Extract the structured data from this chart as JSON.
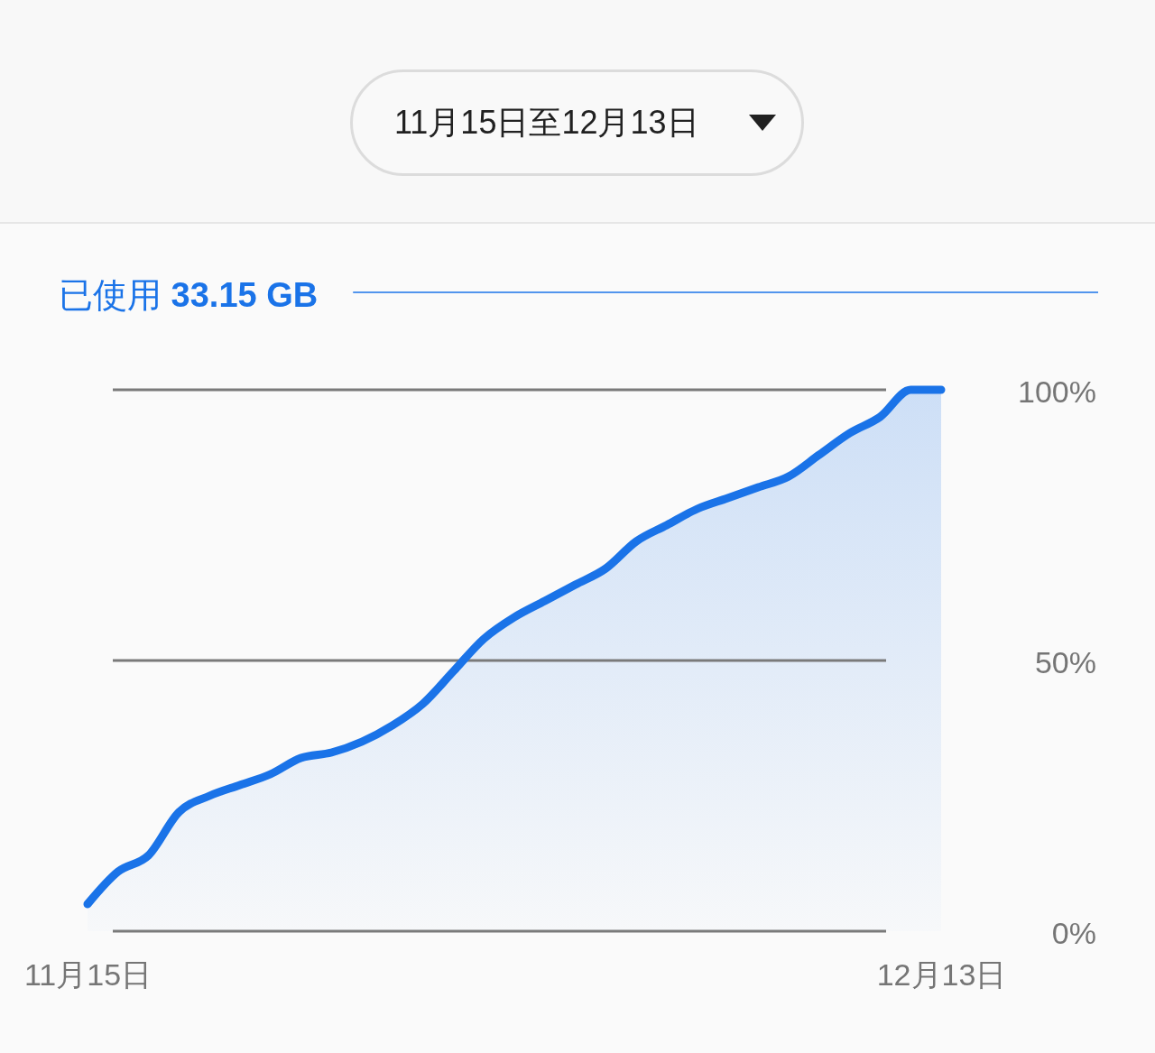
{
  "chart_data": {
    "type": "area",
    "title": "已使用 33.15 GB",
    "subtitle": "11月15日至12月13日",
    "x": [
      "--11-15",
      "--11-16",
      "--11-17",
      "--11-18",
      "--11-19",
      "--11-20",
      "--11-21",
      "--11-22",
      "--11-23",
      "--11-24",
      "--11-25",
      "--11-26",
      "--11-27",
      "--11-28",
      "--11-29",
      "--11-30",
      "--12-01",
      "--12-02",
      "--12-03",
      "--12-04",
      "--12-05",
      "--12-06",
      "--12-07",
      "--12-08",
      "--12-09",
      "--12-10",
      "--12-11",
      "--12-12",
      "--12-13"
    ],
    "values": [
      5,
      11,
      14,
      22,
      25,
      27,
      29,
      32,
      33,
      35,
      38,
      42,
      48,
      54,
      58,
      61,
      64,
      67,
      72,
      75,
      78,
      80,
      82,
      84,
      88,
      92,
      95,
      100,
      100
    ],
    "color": "#1a73e8",
    "xlim": [
      "--11-15",
      "--12-13"
    ],
    "xticks": [
      {
        "value": "--11-15",
        "label": "11月15日"
      },
      {
        "value": "--12-13",
        "label": "12月13日"
      }
    ],
    "ylim": [
      0,
      100
    ],
    "yticks": [
      {
        "value": 0,
        "label": "0%"
      },
      {
        "value": 50,
        "label": "50%"
      },
      {
        "value": 100,
        "label": "100%"
      }
    ],
    "grid": "y"
  }
}
